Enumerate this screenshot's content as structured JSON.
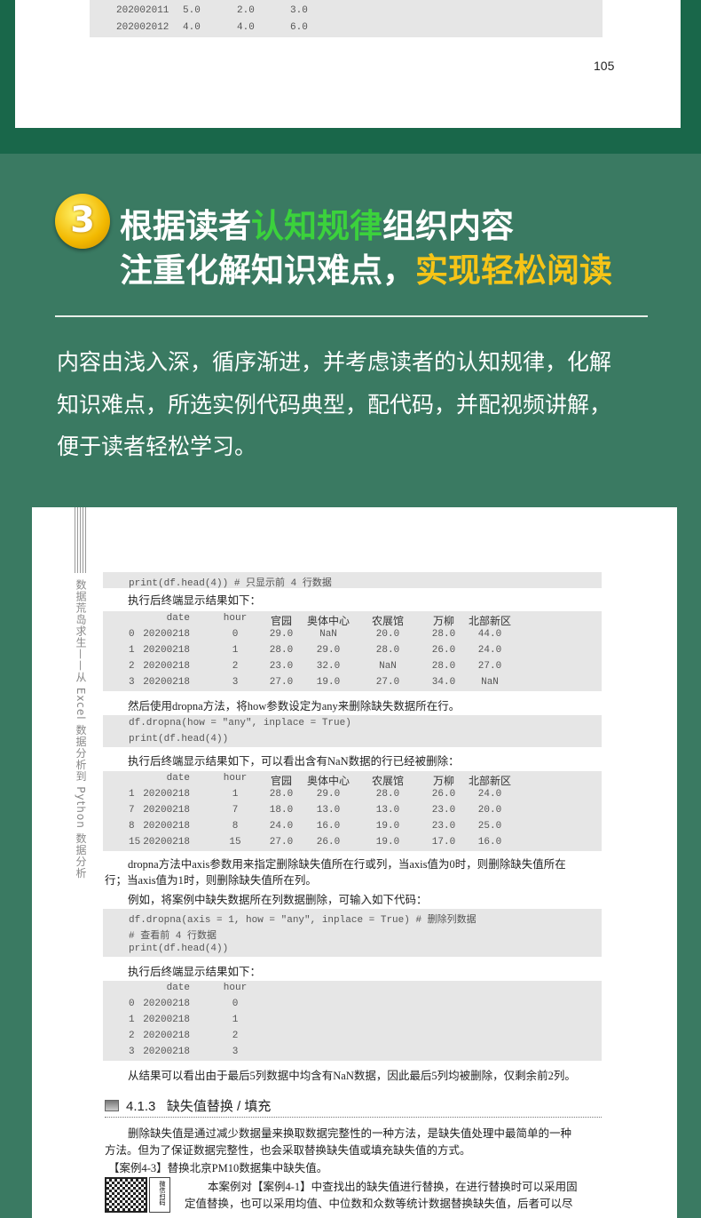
{
  "top_page": {
    "rows": [
      [
        "202002011",
        "5.0",
        "2.0",
        "3.0"
      ],
      [
        "202002012",
        "4.0",
        "4.0",
        "6.0"
      ]
    ],
    "page_number": "105"
  },
  "feature": {
    "badge": "3",
    "line1_a": "根据读者",
    "line1_b": "认知规律",
    "line1_c": "组织内容",
    "line2_a": "注重化解知识难点，",
    "line2_b": "实现轻松阅读",
    "intro": [
      "内容由浅入深，循序渐进，并考虑读者的认知规律，化解",
      "知识难点，所选实例代码典型，配代码，并配视频讲解，",
      "便于读者轻松学习。"
    ],
    "colors": {
      "green": "#3bd23c",
      "yellow": "#f6c417",
      "bg": "#3a7a62",
      "band": "#19674a"
    }
  },
  "book_page": {
    "side_title": "数据荒岛求生——从 Excel 数据分析到 Python 数据分析",
    "code1": [
      "print(df.head(4))    # 只显示前 4 行数据"
    ],
    "text1": "执行后终端显示结果如下：",
    "table1": {
      "header": [
        "",
        "date",
        "hour",
        "官园",
        "奥体中心",
        "农展馆",
        "万柳",
        "北部新区"
      ],
      "rows": [
        [
          "0",
          "20200218",
          "0",
          "29.0",
          "NaN",
          "20.0",
          "28.0",
          "44.0"
        ],
        [
          "1",
          "20200218",
          "1",
          "28.0",
          "29.0",
          "28.0",
          "26.0",
          "24.0"
        ],
        [
          "2",
          "20200218",
          "2",
          "23.0",
          "32.0",
          "NaN",
          "28.0",
          "27.0"
        ],
        [
          "3",
          "20200218",
          "3",
          "27.0",
          "19.0",
          "27.0",
          "34.0",
          "NaN"
        ]
      ]
    },
    "text2": "然后使用dropna方法，将how参数设定为any来删除缺失数据所在行。",
    "code2": [
      "df.dropna(how = \"any\", inplace = True)",
      "print(df.head(4))"
    ],
    "text3": "执行后终端显示结果如下，可以看出含有NaN数据的行已经被删除：",
    "table2": {
      "header": [
        "",
        "date",
        "hour",
        "官园",
        "奥体中心",
        "农展馆",
        "万柳",
        "北部新区"
      ],
      "rows": [
        [
          "1",
          "20200218",
          "1",
          "28.0",
          "29.0",
          "28.0",
          "26.0",
          "24.0"
        ],
        [
          "7",
          "20200218",
          "7",
          "18.0",
          "13.0",
          "13.0",
          "23.0",
          "20.0"
        ],
        [
          "8",
          "20200218",
          "8",
          "24.0",
          "16.0",
          "19.0",
          "23.0",
          "25.0"
        ],
        [
          "15",
          "20200218",
          "15",
          "27.0",
          "26.0",
          "19.0",
          "17.0",
          "16.0"
        ]
      ]
    },
    "para1": [
      "dropna方法中axis参数用来指定删除缺失值所在行或列，当axis值为0时，则删除缺失值所在",
      "行；当axis值为1时，则删除缺失值所在列。"
    ],
    "text4": "例如，将案例中缺失数据所在列数据删除，可输入如下代码：",
    "code3": [
      "df.dropna(axis = 1, how = \"any\", inplace = True)        # 删除列数据",
      "# 查看前 4 行数据",
      "print(df.head(4))"
    ],
    "text5": "执行后终端显示结果如下：",
    "table3": {
      "header": [
        "",
        "date",
        "hour"
      ],
      "rows": [
        [
          "0",
          "20200218",
          "0"
        ],
        [
          "1",
          "20200218",
          "1"
        ],
        [
          "2",
          "20200218",
          "2"
        ],
        [
          "3",
          "20200218",
          "3"
        ]
      ]
    },
    "text6": "从结果可以看出由于最后5列数据中均含有NaN数据，因此最后5列均被删除，仅剩余前2列。",
    "section": {
      "icon": "monitor-icon",
      "number": "4.1.3",
      "title": "缺失值替换 / 填充"
    },
    "para2": [
      "删除缺失值是通过减少数据量来换取数据完整性的一种方法，是缺失值处理中最简单的一种",
      "方法。但为了保证数据完整性，也会采取替换缺失值或填充缺失值的方式。"
    ],
    "case": "【案例4-3】替换北京PM10数据集中缺失值。",
    "qr_label": "微信扫码",
    "para3": [
      "本案例对【案例4-1】中查找出的缺失值进行替换，在进行替换时可以采用固",
      "定值替换，也可以采用均值、中位数和众数等统计数据替换缺失值，后者可以尽"
    ]
  }
}
